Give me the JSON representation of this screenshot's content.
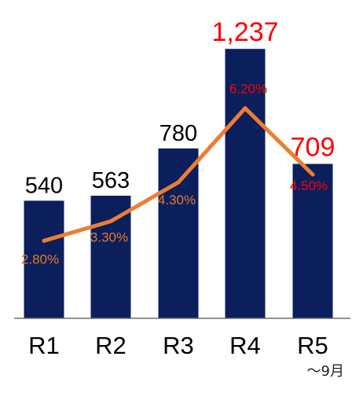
{
  "chart_data": {
    "type": "bar",
    "categories": [
      "R1",
      "R2",
      "R3",
      "R4",
      "R5"
    ],
    "series": [
      {
        "type": "bar",
        "values": [
          540,
          563,
          780,
          1237,
          709
        ],
        "labels": [
          "540",
          "563",
          "780",
          "1,237",
          "709"
        ],
        "label_colors": [
          "#000000",
          "#000000",
          "#000000",
          "#ff0000",
          "#ff0000"
        ],
        "color": "#0b1f5c"
      },
      {
        "type": "line",
        "values": [
          2.8,
          3.3,
          4.3,
          6.2,
          4.5
        ],
        "labels": [
          "2.80%",
          "3.30%",
          "4.30%",
          "6.20%",
          "4.50%"
        ],
        "label_colors": [
          "#e8792b",
          "#e8792b",
          "#e8792b",
          "#ff0000",
          "#ff0000"
        ],
        "color": "#ee7d31"
      }
    ],
    "grid": false,
    "legend": "none"
  },
  "annotations": {
    "note": "〜9月"
  }
}
